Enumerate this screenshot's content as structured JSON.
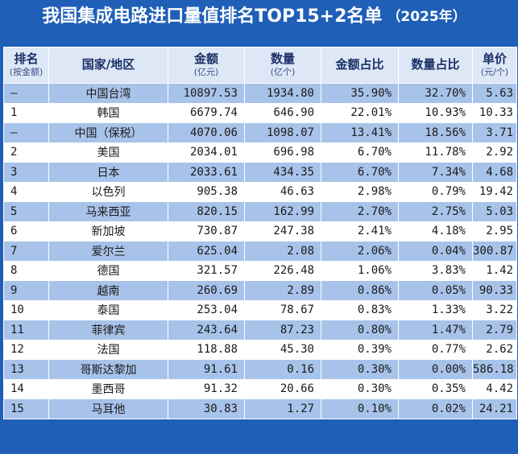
{
  "header": {
    "title": "我国集成电路进口量值排名TOP15+2名单",
    "year": "（2025年）"
  },
  "columns": [
    {
      "label": "排名",
      "sub": "(按金额)"
    },
    {
      "label": "国家/地区",
      "sub": ""
    },
    {
      "label": "金额",
      "sub": "(亿元)"
    },
    {
      "label": "数量",
      "sub": "(亿个)"
    },
    {
      "label": "金额占比",
      "sub": ""
    },
    {
      "label": "数量占比",
      "sub": ""
    },
    {
      "label": "单价",
      "sub": "(元/个)"
    }
  ],
  "rows": [
    {
      "rank": "–",
      "name": "中国台湾",
      "amount": "10897.53",
      "qty": "1934.80",
      "amount_share": "35.90%",
      "qty_share": "32.70%",
      "price": "5.63"
    },
    {
      "rank": "1",
      "name": "韩国",
      "amount": "6679.74",
      "qty": "646.90",
      "amount_share": "22.01%",
      "qty_share": "10.93%",
      "price": "10.33"
    },
    {
      "rank": "–",
      "name": "中国（保税）",
      "amount": "4070.06",
      "qty": "1098.07",
      "amount_share": "13.41%",
      "qty_share": "18.56%",
      "price": "3.71"
    },
    {
      "rank": "2",
      "name": "美国",
      "amount": "2034.01",
      "qty": "696.98",
      "amount_share": "6.70%",
      "qty_share": "11.78%",
      "price": "2.92"
    },
    {
      "rank": "3",
      "name": "日本",
      "amount": "2033.61",
      "qty": "434.35",
      "amount_share": "6.70%",
      "qty_share": "7.34%",
      "price": "4.68"
    },
    {
      "rank": "4",
      "name": "以色列",
      "amount": "905.38",
      "qty": "46.63",
      "amount_share": "2.98%",
      "qty_share": "0.79%",
      "price": "19.42"
    },
    {
      "rank": "5",
      "name": "马来西亚",
      "amount": "820.15",
      "qty": "162.99",
      "amount_share": "2.70%",
      "qty_share": "2.75%",
      "price": "5.03"
    },
    {
      "rank": "6",
      "name": "新加坡",
      "amount": "730.87",
      "qty": "247.38",
      "amount_share": "2.41%",
      "qty_share": "4.18%",
      "price": "2.95"
    },
    {
      "rank": "7",
      "name": "爱尔兰",
      "amount": "625.04",
      "qty": "2.08",
      "amount_share": "2.06%",
      "qty_share": "0.04%",
      "price": "300.87"
    },
    {
      "rank": "8",
      "name": "德国",
      "amount": "321.57",
      "qty": "226.48",
      "amount_share": "1.06%",
      "qty_share": "3.83%",
      "price": "1.42"
    },
    {
      "rank": "9",
      "name": "越南",
      "amount": "260.69",
      "qty": "2.89",
      "amount_share": "0.86%",
      "qty_share": "0.05%",
      "price": "90.33"
    },
    {
      "rank": "10",
      "name": "泰国",
      "amount": "253.04",
      "qty": "78.67",
      "amount_share": "0.83%",
      "qty_share": "1.33%",
      "price": "3.22"
    },
    {
      "rank": "11",
      "name": "菲律宾",
      "amount": "243.64",
      "qty": "87.23",
      "amount_share": "0.80%",
      "qty_share": "1.47%",
      "price": "2.79"
    },
    {
      "rank": "12",
      "name": "法国",
      "amount": "118.88",
      "qty": "45.30",
      "amount_share": "0.39%",
      "qty_share": "0.77%",
      "price": "2.62"
    },
    {
      "rank": "13",
      "name": "哥斯达黎加",
      "amount": "91.61",
      "qty": "0.16",
      "amount_share": "0.30%",
      "qty_share": "0.00%",
      "price": "586.18"
    },
    {
      "rank": "14",
      "name": "墨西哥",
      "amount": "91.32",
      "qty": "20.66",
      "amount_share": "0.30%",
      "qty_share": "0.35%",
      "price": "4.42"
    },
    {
      "rank": "15",
      "name": "马耳他",
      "amount": "30.83",
      "qty": "1.27",
      "amount_share": "0.10%",
      "qty_share": "0.02%",
      "price": "24.21"
    }
  ],
  "colors": {
    "background": "#1f5fb8",
    "header_cell": "#dde7f6",
    "row_light": "#ffffff",
    "row_blue": "#a8c3ea",
    "title_text": "#ffffff"
  }
}
